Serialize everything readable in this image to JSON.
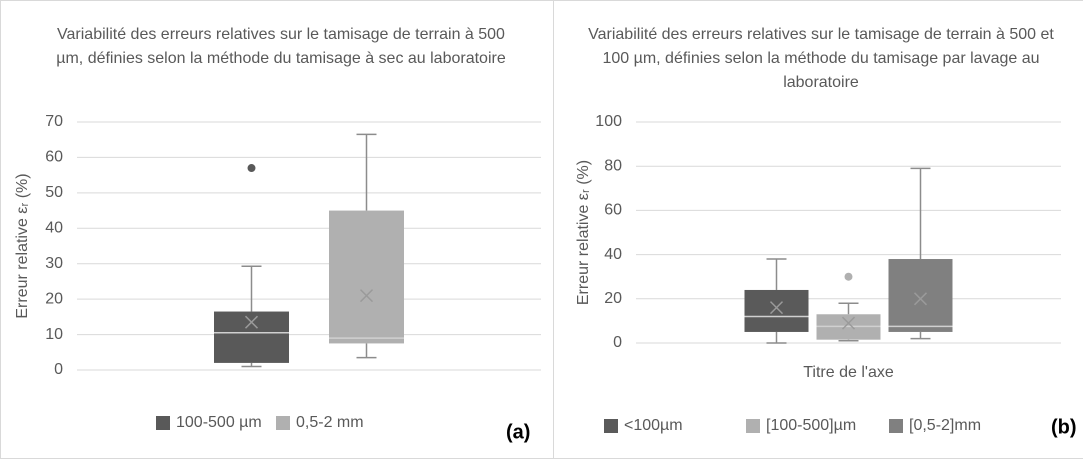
{
  "chart_data": [
    {
      "type": "box",
      "title": "Variabilité des erreurs relatives sur le tamisage de terrain à 500 µm, définies selon la méthode du tamisage à sec au laboratoire",
      "ylabel": "Erreur relative εᵣ (%)",
      "annotation": "(a)",
      "ylim": [
        0,
        70
      ],
      "yticks": [
        0,
        10,
        20,
        30,
        40,
        50,
        60,
        70
      ],
      "grid": true,
      "series": [
        {
          "name": "100-500 µm",
          "color": "#595959",
          "whislo": 1,
          "q1": 2,
          "med": 10.5,
          "q3": 16.5,
          "whishi": 29.3,
          "mean": 13.5,
          "outliers": [
            57
          ]
        },
        {
          "name": "0,5-2 mm",
          "color": "#b0b0b0",
          "whislo": 3.5,
          "q1": 7.5,
          "med": 9,
          "q3": 45,
          "whishi": 66.5,
          "mean": 21,
          "outliers": []
        }
      ]
    },
    {
      "type": "box",
      "title": "Variabilité des erreurs relatives sur le tamisage de terrain à 500 et 100 µm, définies selon la méthode du tamisage par lavage au laboratoire",
      "ylabel": "Erreur relative εᵣ (%)",
      "xlabel": "Titre de l'axe",
      "annotation": "(b)",
      "ylim": [
        0,
        100
      ],
      "yticks": [
        0,
        20,
        40,
        60,
        80,
        100
      ],
      "grid": true,
      "series": [
        {
          "name": "<100µm",
          "color": "#5a5a5a",
          "whislo": 0,
          "q1": 5,
          "med": 12,
          "q3": 24,
          "whishi": 38,
          "mean": 16,
          "outliers": []
        },
        {
          "name": "[100-500]µm",
          "color": "#b0b0b0",
          "whislo": 1,
          "q1": 1.5,
          "med": 7.5,
          "q3": 13,
          "whishi": 18,
          "mean": 9,
          "outliers": [
            30
          ]
        },
        {
          "name": "[0,5-2]mm",
          "color": "#808080",
          "whislo": 2,
          "q1": 5,
          "med": 7.5,
          "q3": 38,
          "whishi": 79,
          "mean": 20,
          "outliers": []
        }
      ]
    }
  ]
}
